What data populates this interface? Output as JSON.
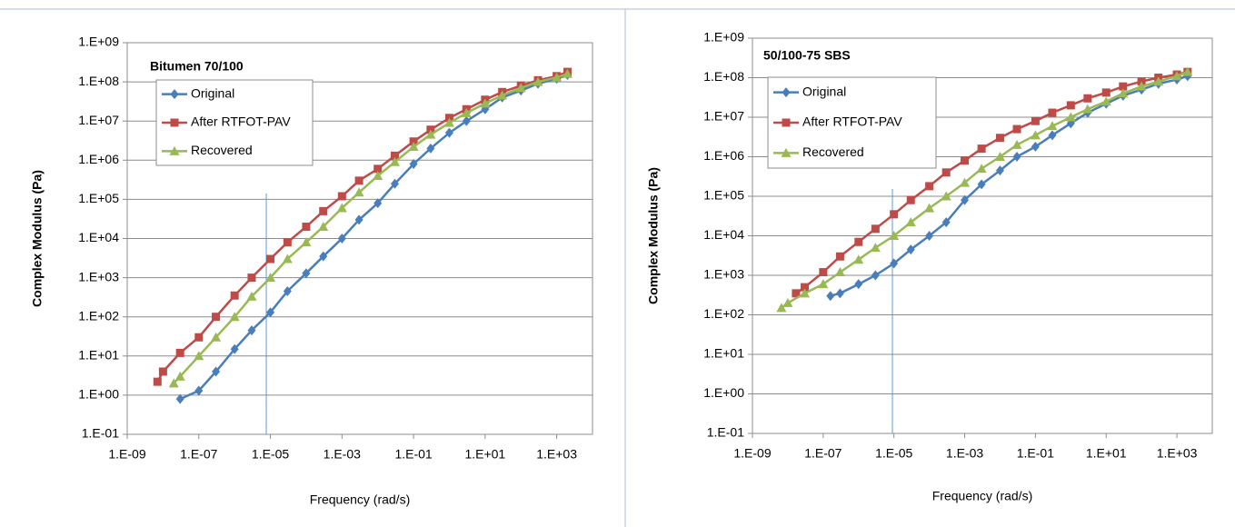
{
  "chart_data": [
    {
      "type": "line",
      "title": "Bitumen 70/100",
      "xlabel": "Frequency (rad/s)",
      "ylabel": "Complex Modulus (Pa)",
      "xscale": "log",
      "yscale": "log",
      "grid": true,
      "legend": "upper left",
      "xlim": [
        1e-09,
        10000.0
      ],
      "ylim": [
        0.1,
        1000000000.0
      ],
      "xticks": [
        {
          "value": 1e-09,
          "label": "1.E-09"
        },
        {
          "value": 1e-07,
          "label": "1.E-07"
        },
        {
          "value": 1e-05,
          "label": "1.E-05"
        },
        {
          "value": 0.001,
          "label": "1.E-03"
        },
        {
          "value": 0.1,
          "label": "1.E-01"
        },
        {
          "value": 10,
          "label": "1.E+01"
        },
        {
          "value": 1000,
          "label": "1.E+03"
        }
      ],
      "yticks": [
        {
          "value": 0.1,
          "label": "1.E-01"
        },
        {
          "value": 1,
          "label": "1.E+00"
        },
        {
          "value": 10,
          "label": "1.E+01"
        },
        {
          "value": 100,
          "label": "1.E+02"
        },
        {
          "value": 1000,
          "label": "1.E+03"
        },
        {
          "value": 10000,
          "label": "1.E+04"
        },
        {
          "value": 100000,
          "label": "1.E+05"
        },
        {
          "value": 1000000,
          "label": "1.E+06"
        },
        {
          "value": 10000000,
          "label": "1.E+07"
        },
        {
          "value": 100000000,
          "label": "1.E+08"
        },
        {
          "value": 1000000000,
          "label": "1.E+09"
        }
      ],
      "series": [
        {
          "name": "Original",
          "color": "#4a7ebb",
          "marker": "diamond",
          "x": [
            3e-08,
            1e-07,
            3e-07,
            1e-06,
            3e-06,
            1e-05,
            3e-05,
            0.0001,
            0.0003,
            0.001,
            0.003,
            0.01,
            0.03,
            0.1,
            0.3,
            1,
            3,
            10,
            30,
            100,
            300,
            1000,
            2000
          ],
          "values": [
            0.8,
            1.3,
            4,
            15,
            45,
            130,
            450,
            1300,
            3500,
            10000,
            30000,
            80000,
            250000,
            800000,
            2000000,
            5000000,
            10000000,
            20000000,
            40000000,
            60000000,
            90000000,
            120000000,
            150000000
          ]
        },
        {
          "name": "After RTFOT-PAV",
          "color": "#be4b48",
          "marker": "square",
          "x": [
            7e-09,
            1e-08,
            3e-08,
            1e-07,
            3e-07,
            1e-06,
            3e-06,
            1e-05,
            3e-05,
            0.0001,
            0.0003,
            0.001,
            0.003,
            0.01,
            0.03,
            0.1,
            0.3,
            1,
            3,
            10,
            30,
            100,
            300,
            1000,
            2000
          ],
          "values": [
            2.2,
            4,
            12,
            30,
            100,
            350,
            1000,
            3000,
            8000,
            20000,
            50000,
            120000,
            300000,
            600000,
            1300000,
            3000000,
            6000000,
            12000000,
            20000000,
            35000000,
            55000000,
            80000000,
            110000000,
            140000000,
            180000000
          ]
        },
        {
          "name": "Recovered",
          "color": "#98b954",
          "marker": "triangle",
          "x": [
            2e-08,
            3e-08,
            1e-07,
            3e-07,
            1e-06,
            3e-06,
            1e-05,
            3e-05,
            0.0001,
            0.0003,
            0.001,
            0.003,
            0.01,
            0.03,
            0.1,
            0.3,
            1,
            3,
            10,
            30,
            100,
            300,
            1000,
            2000
          ],
          "values": [
            2,
            3,
            10,
            30,
            100,
            330,
            1000,
            3000,
            8000,
            20000,
            60000,
            150000,
            400000,
            900000,
            2200000,
            4500000,
            9000000,
            16000000,
            28000000,
            45000000,
            70000000,
            100000000,
            130000000,
            160000000
          ]
        }
      ]
    },
    {
      "type": "line",
      "title": "50/100-75 SBS",
      "xlabel": "Frequency (rad/s)",
      "ylabel": "Complex Modulus (Pa)",
      "xscale": "log",
      "yscale": "log",
      "grid": true,
      "legend": "upper left",
      "xlim": [
        1e-09,
        10000.0
      ],
      "ylim": [
        0.1,
        1000000000.0
      ],
      "xticks": [
        {
          "value": 1e-09,
          "label": "1.E-09"
        },
        {
          "value": 1e-07,
          "label": "1.E-07"
        },
        {
          "value": 1e-05,
          "label": "1.E-05"
        },
        {
          "value": 0.001,
          "label": "1.E-03"
        },
        {
          "value": 0.1,
          "label": "1.E-01"
        },
        {
          "value": 10,
          "label": "1.E+01"
        },
        {
          "value": 1000,
          "label": "1.E+03"
        }
      ],
      "yticks": [
        {
          "value": 0.1,
          "label": "1.E-01"
        },
        {
          "value": 1,
          "label": "1.E+00"
        },
        {
          "value": 10,
          "label": "1.E+01"
        },
        {
          "value": 100,
          "label": "1.E+02"
        },
        {
          "value": 1000,
          "label": "1.E+03"
        },
        {
          "value": 10000,
          "label": "1.E+04"
        },
        {
          "value": 100000,
          "label": "1.E+05"
        },
        {
          "value": 1000000,
          "label": "1.E+06"
        },
        {
          "value": 10000000,
          "label": "1.E+07"
        },
        {
          "value": 100000000,
          "label": "1.E+08"
        },
        {
          "value": 1000000000,
          "label": "1.E+09"
        }
      ],
      "series": [
        {
          "name": "Original",
          "color": "#4a7ebb",
          "marker": "diamond",
          "x": [
            1.6e-07,
            3e-07,
            1e-06,
            3e-06,
            1e-05,
            3e-05,
            0.0001,
            0.0003,
            0.001,
            0.003,
            0.01,
            0.03,
            0.1,
            0.3,
            1,
            3,
            10,
            30,
            100,
            300,
            1000,
            2000
          ],
          "values": [
            300,
            350,
            600,
            1000,
            2000,
            4500,
            10000,
            22000,
            80000,
            200000,
            450000,
            1000000,
            1800000,
            3500000,
            7000000,
            13000000,
            22000000,
            35000000,
            50000000,
            70000000,
            90000000,
            110000000
          ]
        },
        {
          "name": "After RTFOT-PAV",
          "color": "#be4b48",
          "marker": "square",
          "x": [
            1.7e-08,
            3e-08,
            1e-07,
            3e-07,
            1e-06,
            3e-06,
            1e-05,
            3e-05,
            0.0001,
            0.0003,
            0.001,
            0.003,
            0.01,
            0.03,
            0.1,
            0.3,
            1,
            3,
            10,
            30,
            100,
            300,
            1000,
            2000
          ],
          "values": [
            350,
            500,
            1200,
            3000,
            7000,
            15000,
            35000,
            80000,
            180000,
            400000,
            800000,
            1600000,
            3000000,
            5000000,
            8000000,
            13000000,
            20000000,
            30000000,
            42000000,
            60000000,
            80000000,
            100000000,
            120000000,
            140000000
          ]
        },
        {
          "name": "Recovered",
          "color": "#98b954",
          "marker": "triangle",
          "x": [
            6.6e-09,
            1e-08,
            3e-08,
            1e-07,
            3e-07,
            1e-06,
            3e-06,
            1e-05,
            3e-05,
            0.0001,
            0.0003,
            0.001,
            0.003,
            0.01,
            0.03,
            0.1,
            0.3,
            1,
            3,
            10,
            30,
            100,
            300,
            1000,
            2000
          ],
          "values": [
            150,
            200,
            350,
            600,
            1200,
            2500,
            5000,
            10000,
            22000,
            50000,
            100000,
            220000,
            500000,
            1000000,
            2000000,
            3500000,
            6000000,
            10000000,
            16000000,
            25000000,
            40000000,
            60000000,
            80000000,
            110000000,
            140000000
          ]
        }
      ]
    }
  ]
}
